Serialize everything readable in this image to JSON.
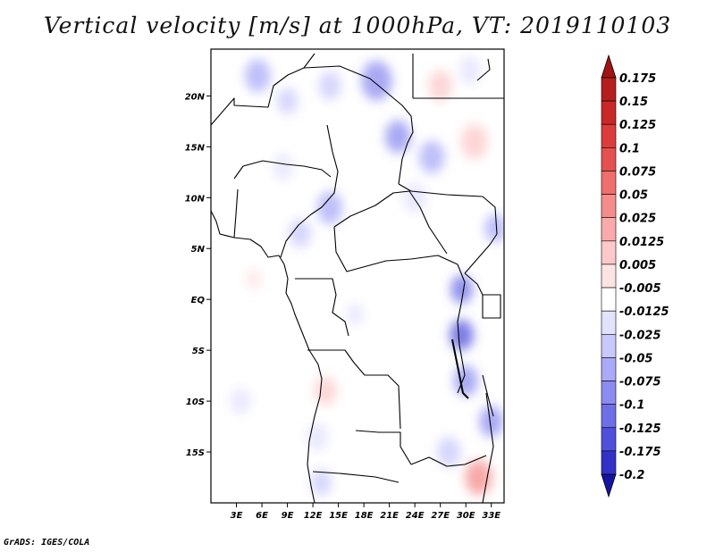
{
  "title": "Vertical velocity [m/s] at 1000hPa, VT: 2019110103",
  "credit": "GrADS: IGES/COLA",
  "map": {
    "lat_range": [
      -20.0,
      24.6
    ],
    "lon_range": [
      0.0,
      34.5
    ],
    "lat_ticks": [
      {
        "v": 20,
        "label": "20N"
      },
      {
        "v": 15,
        "label": "15N"
      },
      {
        "v": 10,
        "label": "10N"
      },
      {
        "v": 5,
        "label": "5N"
      },
      {
        "v": 0,
        "label": "EQ"
      },
      {
        "v": -5,
        "label": "5S"
      },
      {
        "v": -10,
        "label": "10S"
      },
      {
        "v": -15,
        "label": "15S"
      }
    ],
    "lon_ticks": [
      {
        "v": 3,
        "label": "3E"
      },
      {
        "v": 6,
        "label": "6E"
      },
      {
        "v": 9,
        "label": "9E"
      },
      {
        "v": 12,
        "label": "12E"
      },
      {
        "v": 15,
        "label": "15E"
      },
      {
        "v": 18,
        "label": "18E"
      },
      {
        "v": 21,
        "label": "21E"
      },
      {
        "v": 24,
        "label": "24E"
      },
      {
        "v": 27,
        "label": "27E"
      },
      {
        "v": 30,
        "label": "30E"
      },
      {
        "v": 33,
        "label": "33E"
      }
    ]
  },
  "colorbar": {
    "levels": [
      {
        "label": "0.175",
        "color": "#b41e1e"
      },
      {
        "label": "0.15",
        "color": "#c82828"
      },
      {
        "label": "0.125",
        "color": "#dc3c3c"
      },
      {
        "label": "0.1",
        "color": "#e65050"
      },
      {
        "label": "0.075",
        "color": "#f06e6e"
      },
      {
        "label": "0.05",
        "color": "#f58c8c"
      },
      {
        "label": "0.025",
        "color": "#faaaaa"
      },
      {
        "label": "0.0125",
        "color": "#fcc8c8"
      },
      {
        "label": "0.005",
        "color": "#fde4e4"
      },
      {
        "label": "-0.005",
        "color": "#ffffff"
      },
      {
        "label": "-0.0125",
        "color": "#e2e2fd"
      },
      {
        "label": "-0.025",
        "color": "#c8c8fb"
      },
      {
        "label": "-0.05",
        "color": "#aaaaf8"
      },
      {
        "label": "-0.075",
        "color": "#8c8cf0"
      },
      {
        "label": "-0.1",
        "color": "#6e6ee6"
      },
      {
        "label": "-0.125",
        "color": "#5050dc"
      },
      {
        "label": "-0.175",
        "color": "#3232c8"
      },
      {
        "label": "-0.2",
        "color": "#1e1eb4"
      }
    ],
    "top_color": "#a01414",
    "bottom_color": "#1414a0"
  },
  "field_blobs": [
    {
      "lon": 5.5,
      "lat": 22.0,
      "r": 1.5,
      "c": "#aaaaf8"
    },
    {
      "lon": 9.0,
      "lat": 19.5,
      "r": 1.2,
      "c": "#c8c8fb"
    },
    {
      "lon": 14.0,
      "lat": 21.0,
      "r": 1.3,
      "c": "#c8c8fb"
    },
    {
      "lon": 19.5,
      "lat": 21.5,
      "r": 1.8,
      "c": "#8c8cf0"
    },
    {
      "lon": 22.0,
      "lat": 16.0,
      "r": 1.5,
      "c": "#8c8cf0"
    },
    {
      "lon": 26.0,
      "lat": 14.0,
      "r": 1.5,
      "c": "#aaaaf8"
    },
    {
      "lon": 27.0,
      "lat": 21.0,
      "r": 1.4,
      "c": "#fcc8c8"
    },
    {
      "lon": 31.0,
      "lat": 15.5,
      "r": 1.6,
      "c": "#fcc8c8"
    },
    {
      "lon": 30.5,
      "lat": 22.5,
      "r": 1.3,
      "c": "#e2e2fd"
    },
    {
      "lon": 8.5,
      "lat": 13.0,
      "r": 1.2,
      "c": "#e2e2fd"
    },
    {
      "lon": 14.0,
      "lat": 9.0,
      "r": 1.5,
      "c": "#aaaaf8"
    },
    {
      "lon": 10.5,
      "lat": 6.5,
      "r": 1.3,
      "c": "#c8c8fb"
    },
    {
      "lon": 24.0,
      "lat": 10.0,
      "r": 1.4,
      "c": "#e2e2fd"
    },
    {
      "lon": 29.5,
      "lat": 1.0,
      "r": 1.3,
      "c": "#6e6ee6"
    },
    {
      "lon": 29.5,
      "lat": -3.5,
      "r": 1.4,
      "c": "#5050dc"
    },
    {
      "lon": 30.0,
      "lat": -8.0,
      "r": 1.4,
      "c": "#8c8cf0"
    },
    {
      "lon": 33.0,
      "lat": -12.0,
      "r": 1.4,
      "c": "#8c8cf0"
    },
    {
      "lon": 31.5,
      "lat": -17.5,
      "r": 1.6,
      "c": "#f58c8c"
    },
    {
      "lon": 28.0,
      "lat": -15.0,
      "r": 1.4,
      "c": "#c8c8fb"
    },
    {
      "lon": 13.5,
      "lat": -9.0,
      "r": 1.3,
      "c": "#fcc8c8"
    },
    {
      "lon": 12.5,
      "lat": -13.5,
      "r": 1.3,
      "c": "#e2e2fd"
    },
    {
      "lon": 13.0,
      "lat": -18.0,
      "r": 1.2,
      "c": "#c8c8fb"
    },
    {
      "lon": 3.5,
      "lat": -10.0,
      "r": 1.2,
      "c": "#e2e2fd"
    },
    {
      "lon": 5.0,
      "lat": 2.0,
      "r": 1.0,
      "c": "#fde4e4"
    },
    {
      "lon": 17.0,
      "lat": -1.5,
      "r": 1.0,
      "c": "#e2e2fd"
    },
    {
      "lon": 33.5,
      "lat": 7.0,
      "r": 1.3,
      "c": "#aaaaf8"
    }
  ]
}
